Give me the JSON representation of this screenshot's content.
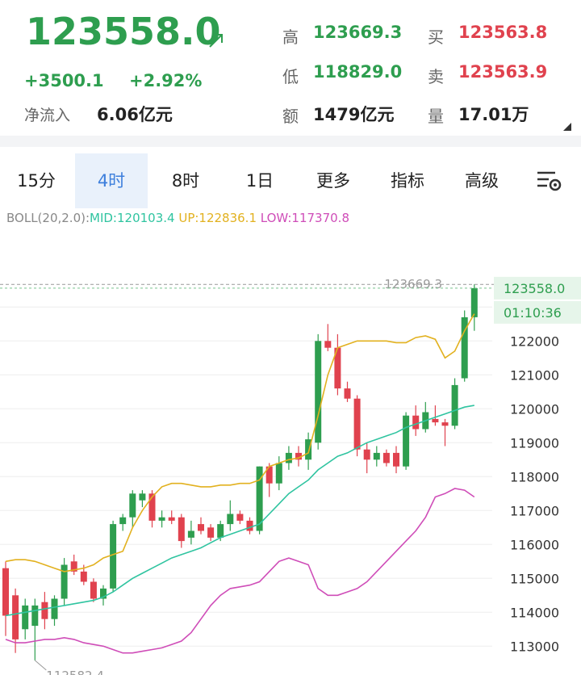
{
  "header": {
    "price": "123558.0",
    "change": "+3500.1",
    "change_pct": "+2.92%",
    "inflow_label": "净流入",
    "inflow": "6.06亿元",
    "stats": [
      {
        "label": "高",
        "value": "123669.3",
        "tone": "up"
      },
      {
        "label": "买",
        "value": "123563.8",
        "tone": "down"
      },
      {
        "label": "低",
        "value": "118829.0",
        "tone": "up"
      },
      {
        "label": "卖",
        "value": "123563.9",
        "tone": "down"
      },
      {
        "label": "额",
        "value": "1479亿元",
        "tone": "plain"
      },
      {
        "label": "量",
        "value": "17.01万",
        "tone": "plain"
      }
    ]
  },
  "tabs": [
    {
      "label": "15分"
    },
    {
      "label": "4时",
      "active": true
    },
    {
      "label": "8时"
    },
    {
      "label": "1日"
    },
    {
      "label": "更多",
      "menu": true
    },
    {
      "label": "指标",
      "menu": true
    },
    {
      "label": "高级",
      "menu": true
    }
  ],
  "indicator": {
    "name": "BOLL(20,2.0):",
    "mid": "MID:120103.4",
    "up": "UP:122836.1",
    "low": "LOW:117370.8"
  },
  "chart_data": {
    "type": "candlestick",
    "up_color": "#2e9e4f",
    "down_color": "#e0424e",
    "ylim": [
      112150,
      125150
    ],
    "yticks": [
      113000,
      114000,
      115000,
      116000,
      117000,
      118000,
      119000,
      120000,
      121000,
      122000,
      123000
    ],
    "grid": true,
    "open": [
      115300,
      114500,
      113500,
      113600,
      114300,
      113800,
      114400,
      115500,
      115200,
      114900,
      114400,
      114700,
      116600,
      116800,
      117300,
      117500,
      116700,
      116800,
      116800,
      116200,
      116600,
      116500,
      116200,
      116600,
      116900,
      116700,
      116400,
      118300,
      117800,
      118400,
      118700,
      118500,
      119000,
      122000,
      121800,
      120600,
      120300,
      118800,
      118500,
      118700,
      118700,
      118300,
      119800,
      119400,
      119700,
      119600,
      119500,
      120900,
      122700
    ],
    "high": [
      115500,
      114700,
      114400,
      114400,
      114600,
      114500,
      115600,
      115700,
      115400,
      115000,
      114800,
      116700,
      116900,
      117600,
      117600,
      117600,
      117000,
      117000,
      116900,
      116700,
      116800,
      116600,
      116700,
      117300,
      117000,
      116800,
      118300,
      118400,
      118600,
      118900,
      118900,
      119300,
      122200,
      122500,
      122200,
      120800,
      120400,
      119000,
      118900,
      118800,
      118900,
      119900,
      120100,
      120200,
      120100,
      119700,
      120900,
      122900,
      123669.3
    ],
    "low": [
      113300,
      112800,
      113200,
      112582.4,
      113500,
      113600,
      114200,
      115100,
      114800,
      114300,
      114200,
      114600,
      116400,
      116500,
      117100,
      116500,
      116500,
      116600,
      115900,
      116000,
      116300,
      116100,
      116100,
      116400,
      116600,
      116300,
      116300,
      117400,
      117600,
      118200,
      118300,
      118200,
      118800,
      121700,
      120400,
      120200,
      118600,
      118100,
      118300,
      118300,
      118100,
      118200,
      119200,
      119300,
      119500,
      118900,
      119400,
      120800,
      122300
    ],
    "close": [
      113900,
      113200,
      114200,
      114200,
      113800,
      114400,
      115400,
      115200,
      114900,
      114400,
      114700,
      116600,
      116800,
      117500,
      117500,
      116700,
      116800,
      116700,
      116100,
      116400,
      116400,
      116200,
      116600,
      116900,
      116700,
      116400,
      118300,
      117800,
      118400,
      118700,
      118500,
      119100,
      122000,
      121800,
      120600,
      120300,
      118800,
      118500,
      118700,
      118400,
      118300,
      119800,
      119400,
      119900,
      119600,
      119500,
      120700,
      122700,
      123558
    ],
    "lines": [
      {
        "color": "#2fc4a0",
        "values": [
          113900,
          113950,
          114000,
          114050,
          114100,
          114150,
          114200,
          114250,
          114300,
          114350,
          114450,
          114600,
          114800,
          115000,
          115150,
          115300,
          115450,
          115600,
          115700,
          115800,
          115900,
          116050,
          116200,
          116300,
          116400,
          116500,
          116600,
          116900,
          117200,
          117500,
          117700,
          117900,
          118200,
          118400,
          118600,
          118700,
          118850,
          119000,
          119100,
          119200,
          119300,
          119450,
          119550,
          119650,
          119750,
          119850,
          119950,
          120050,
          120100
        ]
      },
      {
        "color": "#e2b11f",
        "values": [
          115500,
          115550,
          115550,
          115500,
          115400,
          115300,
          115200,
          115250,
          115300,
          115400,
          115600,
          115700,
          115800,
          116500,
          117000,
          117400,
          117700,
          117800,
          117800,
          117750,
          117700,
          117700,
          117750,
          117750,
          117800,
          117800,
          117900,
          118300,
          118400,
          118500,
          118550,
          118700,
          119800,
          121000,
          121800,
          121900,
          122000,
          122000,
          122000,
          122000,
          121950,
          121950,
          122100,
          122150,
          122050,
          121500,
          121700,
          122300,
          122800
        ]
      },
      {
        "color": "#cf4db8",
        "values": [
          113200,
          113100,
          113100,
          113150,
          113200,
          113200,
          113250,
          113200,
          113100,
          113050,
          113000,
          112900,
          112800,
          112800,
          112850,
          112900,
          112950,
          113050,
          113150,
          113400,
          113800,
          114200,
          114500,
          114700,
          114750,
          114800,
          114900,
          115200,
          115500,
          115600,
          115500,
          115400,
          114700,
          114500,
          114500,
          114600,
          114700,
          114900,
          115200,
          115500,
          115800,
          116100,
          116400,
          116800,
          117400,
          117500,
          117650,
          117600,
          117400
        ]
      }
    ],
    "last": {
      "value": 123558.0,
      "label": "123558.0"
    },
    "countdown": "01:10:36",
    "high_marker": 123669.3,
    "low_marker": 112582.4
  }
}
